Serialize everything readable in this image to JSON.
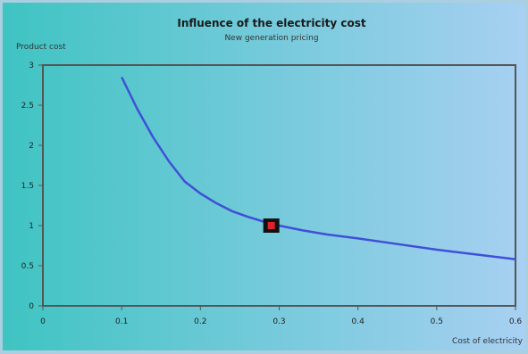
{
  "chart_data": {
    "type": "line",
    "title": "Influence of the electricity cost",
    "subtitle": "New generation pricing",
    "ylabel": "Product cost",
    "xlabel": "Cost of electricity",
    "xlim": [
      0,
      0.6
    ],
    "ylim": [
      0,
      3
    ],
    "x_ticks": [
      "0",
      "0.1",
      "0.2",
      "0.3",
      "0.4",
      "0.5",
      "0.6"
    ],
    "y_ticks": [
      "0",
      "0.5",
      "1",
      "1.5",
      "2",
      "2.5",
      "3"
    ],
    "series": [
      {
        "x": [
          0.1,
          0.12,
          0.14,
          0.16,
          0.18,
          0.2,
          0.22,
          0.24,
          0.26,
          0.28,
          0.3,
          0.33,
          0.36,
          0.4,
          0.45,
          0.5,
          0.55,
          0.6
        ],
        "y": [
          2.85,
          2.45,
          2.1,
          1.8,
          1.55,
          1.4,
          1.28,
          1.18,
          1.11,
          1.05,
          1.0,
          0.94,
          0.89,
          0.84,
          0.77,
          0.7,
          0.64,
          0.58
        ]
      }
    ],
    "highlight_point": {
      "x": 0.29,
      "y": 1.0
    },
    "colors": {
      "background_left": "#3fc4c2",
      "background_right": "#a8d0f2",
      "line": "#3f4fd8",
      "marker_outer": "#111111",
      "marker_inner": "#e0202a",
      "axis": "#555555",
      "text": "#222222"
    }
  }
}
